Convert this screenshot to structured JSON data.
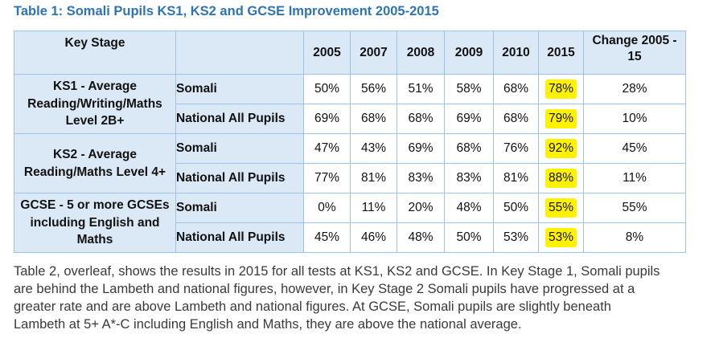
{
  "caption": "Table 1: Somali Pupils KS1, KS2 and GCSE Improvement 2005-2015",
  "table": {
    "headers": {
      "key_stage": "Key Stage",
      "group": "",
      "years": [
        "2005",
        "2007",
        "2008",
        "2009",
        "2010",
        "2015"
      ],
      "change": "Change 2005 - 15"
    },
    "sections": [
      {
        "stage": "KS1 - Average Reading/Writing/Maths Level 2B+",
        "rows": [
          {
            "group": "Somali",
            "values": [
              "50%",
              "56%",
              "51%",
              "58%",
              "68%",
              "78%"
            ],
            "change": "28%"
          },
          {
            "group": "National All Pupils",
            "values": [
              "69%",
              "68%",
              "68%",
              "69%",
              "68%",
              "79%"
            ],
            "change": "10%"
          }
        ]
      },
      {
        "stage": "KS2 - Average Reading/Maths Level 4+",
        "rows": [
          {
            "group": "Somali",
            "values": [
              "47%",
              "43%",
              "69%",
              "68%",
              "76%",
              "92%"
            ],
            "change": "45%"
          },
          {
            "group": "National All Pupils",
            "values": [
              "77%",
              "81%",
              "83%",
              "83%",
              "81%",
              "88%"
            ],
            "change": "11%"
          }
        ]
      },
      {
        "stage": "GCSE - 5 or more GCSEs including English and Maths",
        "rows": [
          {
            "group": "Somali",
            "values": [
              "0%",
              "11%",
              "20%",
              "48%",
              "50%",
              "55%"
            ],
            "change": "55%"
          },
          {
            "group": "National All Pupils",
            "values": [
              "45%",
              "46%",
              "48%",
              "50%",
              "53%",
              "53%"
            ],
            "change": "8%"
          }
        ]
      }
    ]
  },
  "paragraph": [
    "Table 2, overleaf, shows the results in 2015 for all tests at KS1, KS2 and GCSE. In Key Stage 1, Somali pupils",
    "are behind the Lambeth and national figures, however, in Key Stage 2 Somali pupils have progressed at a",
    "greater rate and are above Lambeth and national figures. At GCSE, Somali pupils are slightly beneath",
    "Lambeth at 5+ A*-C including English and Maths, they are above the national average."
  ],
  "colors": {
    "caption": "#2e74b5",
    "header_fill": "#dbe8f5",
    "border": "#9dc3e6",
    "highlight": "#fff200"
  }
}
